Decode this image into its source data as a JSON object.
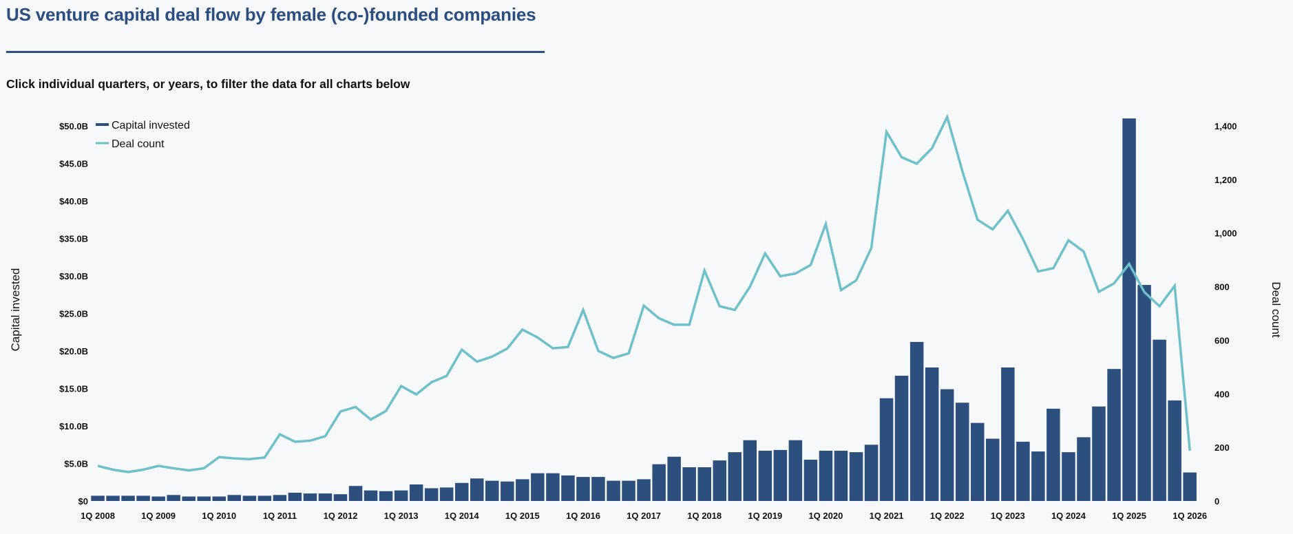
{
  "title": "US venture capital deal flow by female (co-)founded companies",
  "subtitle": "Click individual quarters, or years, to filter the data for all charts below",
  "colors": {
    "title": "#2a4e7f",
    "bar": "#2c4f7e",
    "line": "#6cc1cb",
    "background": "#f6f8fa"
  },
  "chart_data": {
    "type": "bar+line",
    "title": "US venture capital deal flow by female (co-)founded companies",
    "ylabel_left": "Capital invested",
    "ylabel_right": "Deal count",
    "ylim_left": [
      0,
      50
    ],
    "ylim_right": [
      0,
      1400
    ],
    "yticks_left": [
      "$0",
      "$5.0B",
      "$10.0B",
      "$15.0B",
      "$20.0B",
      "$25.0B",
      "$30.0B",
      "$35.0B",
      "$40.0B",
      "$45.0B",
      "$50.0B"
    ],
    "yticks_right": [
      "0",
      "200",
      "400",
      "600",
      "800",
      "1,000",
      "1,200",
      "1,400"
    ],
    "xtick_labels": [
      "1Q 2008",
      "1Q 2009",
      "1Q 2010",
      "1Q 2011",
      "1Q 2012",
      "1Q 2013",
      "1Q 2014",
      "1Q 2015",
      "1Q 2016",
      "1Q 2017",
      "1Q 2018",
      "1Q 2019",
      "1Q 2020",
      "1Q 2021",
      "1Q 2022",
      "1Q 2023",
      "1Q 2024",
      "1Q 2025",
      "1Q 2026"
    ],
    "legend": {
      "position": "top-left",
      "items": [
        "Capital invested",
        "Deal count"
      ]
    },
    "series": [
      {
        "name": "Capital invested",
        "type": "bar",
        "axis": "left",
        "unit": "$B",
        "values": [
          0.7,
          0.7,
          0.7,
          0.7,
          0.6,
          0.8,
          0.6,
          0.6,
          0.6,
          0.8,
          0.7,
          0.7,
          0.8,
          1.1,
          1.0,
          1.0,
          0.9,
          2.0,
          1.4,
          1.3,
          1.4,
          2.2,
          1.7,
          1.8,
          2.4,
          3.0,
          2.7,
          2.6,
          2.9,
          3.7,
          3.7,
          3.4,
          3.2,
          3.2,
          2.7,
          2.7,
          2.9,
          4.9,
          5.9,
          4.5,
          4.5,
          5.4,
          6.5,
          8.1,
          6.7,
          6.8,
          8.1,
          5.5,
          6.7,
          6.7,
          6.5,
          7.5,
          13.7,
          16.7,
          21.2,
          17.8,
          14.9,
          13.1,
          10.4,
          8.3,
          17.8,
          7.9,
          6.6,
          12.3,
          6.5,
          8.5,
          12.6,
          17.6,
          51.0,
          28.8,
          21.5,
          13.4,
          3.8
        ]
      },
      {
        "name": "Deal count",
        "type": "line",
        "axis": "right",
        "values": [
          131,
          117,
          108,
          117,
          131,
          122,
          114,
          122,
          164,
          159,
          156,
          162,
          249,
          221,
          225,
          242,
          334,
          351,
          304,
          336,
          429,
          398,
          443,
          467,
          565,
          520,
          539,
          569,
          640,
          610,
          570,
          575,
          713,
          560,
          534,
          551,
          729,
          682,
          658,
          658,
          860,
          727,
          713,
          800,
          924,
          839,
          849,
          881,
          1034,
          787,
          823,
          944,
          1378,
          1283,
          1259,
          1317,
          1433,
          1232,
          1050,
          1014,
          1083,
          978,
          857,
          869,
          973,
          931,
          781,
          812,
          885,
          780,
          727,
          803,
          188
        ]
      }
    ]
  }
}
